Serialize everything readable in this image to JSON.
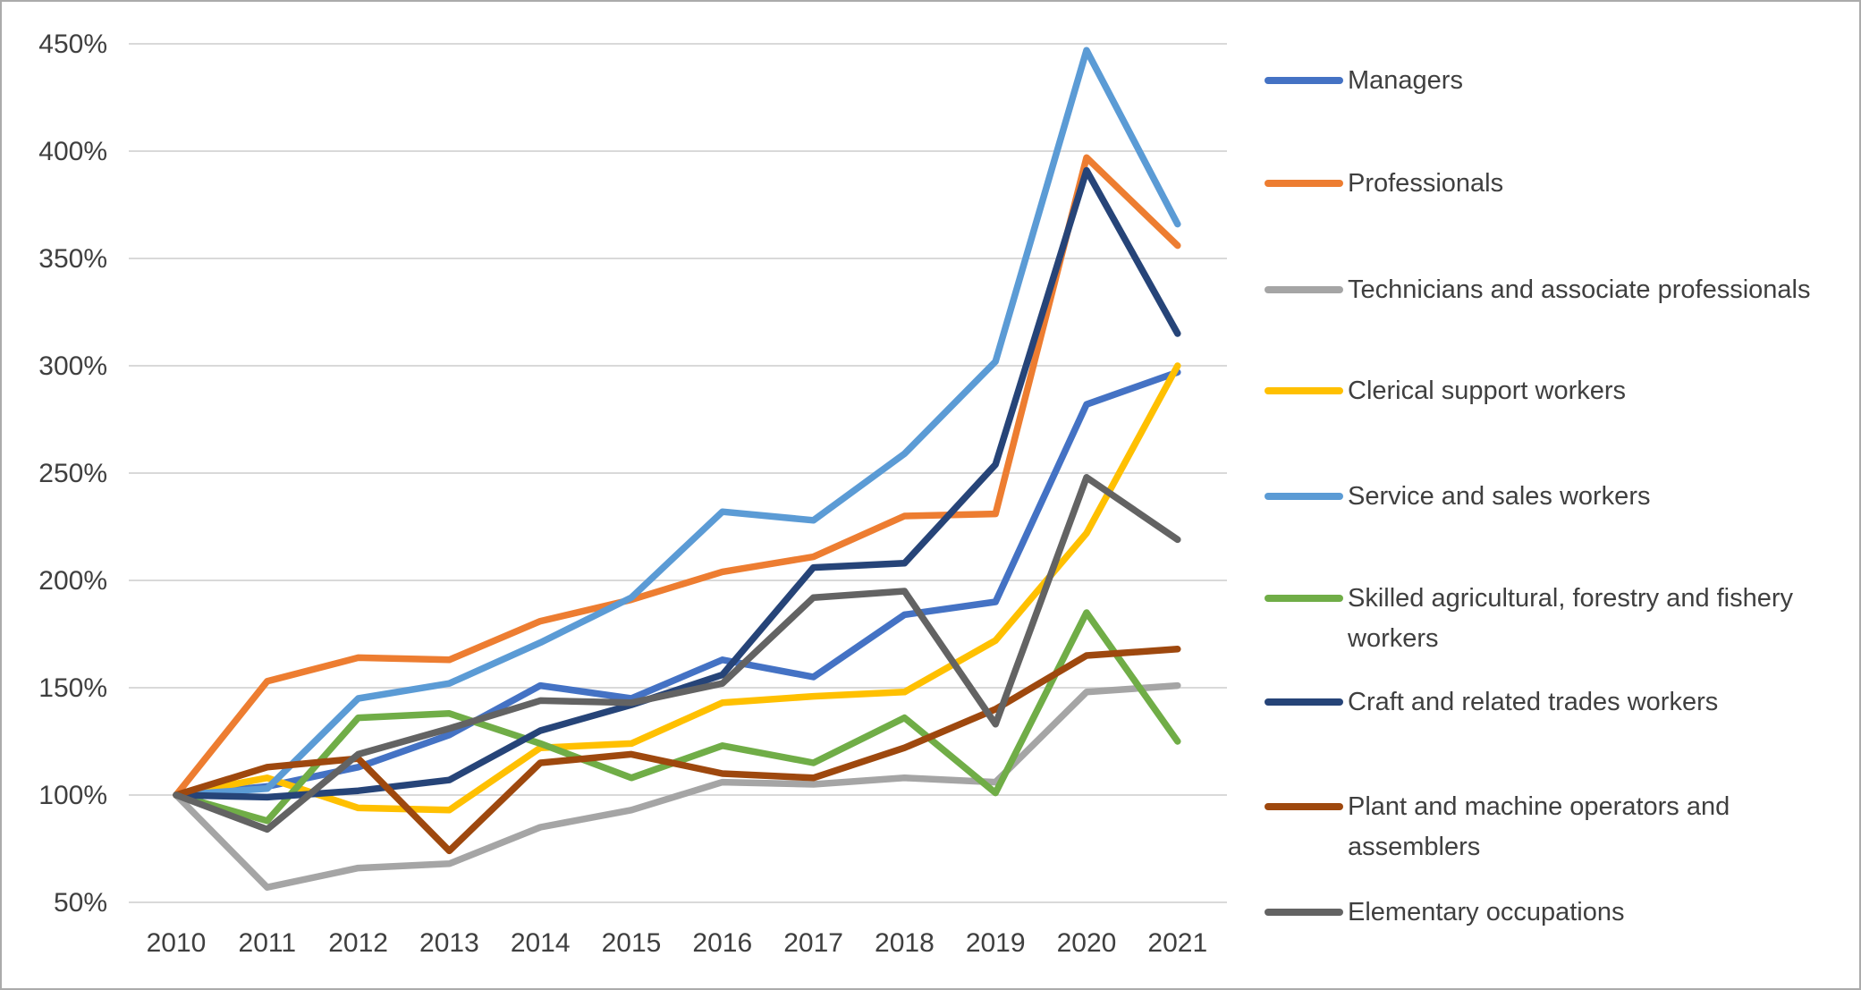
{
  "chart_data": {
    "type": "line",
    "title": "",
    "categories": [
      "2010",
      "2011",
      "2012",
      "2013",
      "2014",
      "2015",
      "2016",
      "2017",
      "2018",
      "2019",
      "2020",
      "2021"
    ],
    "ylim": [
      50,
      450
    ],
    "ytick_step": 50,
    "ytick_suffix": "%",
    "grid": true,
    "legend_position": "right",
    "series": [
      {
        "name": "Managers",
        "color": "#4472C4",
        "values": [
          100,
          104,
          113,
          128,
          151,
          145,
          163,
          155,
          184,
          190,
          282,
          297
        ]
      },
      {
        "name": "Professionals",
        "color": "#ED7D31",
        "values": [
          100,
          153,
          164,
          163,
          181,
          191,
          204,
          211,
          230,
          231,
          397,
          356
        ]
      },
      {
        "name": "Technicians and associate professionals",
        "color": "#A5A5A5",
        "values": [
          100,
          57,
          66,
          68,
          85,
          93,
          106,
          105,
          108,
          106,
          148,
          151
        ]
      },
      {
        "name": "Clerical support workers",
        "color": "#FFC000",
        "values": [
          100,
          108,
          94,
          93,
          122,
          124,
          143,
          146,
          148,
          172,
          222,
          300
        ]
      },
      {
        "name": "Service and sales workers",
        "color": "#5B9BD5",
        "values": [
          100,
          103,
          145,
          152,
          171,
          192,
          232,
          228,
          259,
          302,
          447,
          366
        ]
      },
      {
        "name": "Skilled agricultural, forestry and fishery workers",
        "color": "#70AD47",
        "values": [
          100,
          88,
          136,
          138,
          124,
          108,
          123,
          115,
          136,
          101,
          185,
          125
        ]
      },
      {
        "name": "Craft and related trades workers",
        "color": "#264478",
        "values": [
          100,
          99,
          102,
          107,
          130,
          142,
          156,
          206,
          208,
          254,
          391,
          315
        ]
      },
      {
        "name": "Plant and machine operators and assemblers",
        "color": "#9E480E",
        "values": [
          100,
          113,
          117,
          74,
          115,
          119,
          110,
          108,
          122,
          140,
          165,
          168
        ]
      },
      {
        "name": "Elementary occupations",
        "color": "#636363",
        "values": [
          100,
          84,
          119,
          131,
          144,
          143,
          152,
          192,
          195,
          133,
          248,
          219
        ]
      }
    ]
  }
}
